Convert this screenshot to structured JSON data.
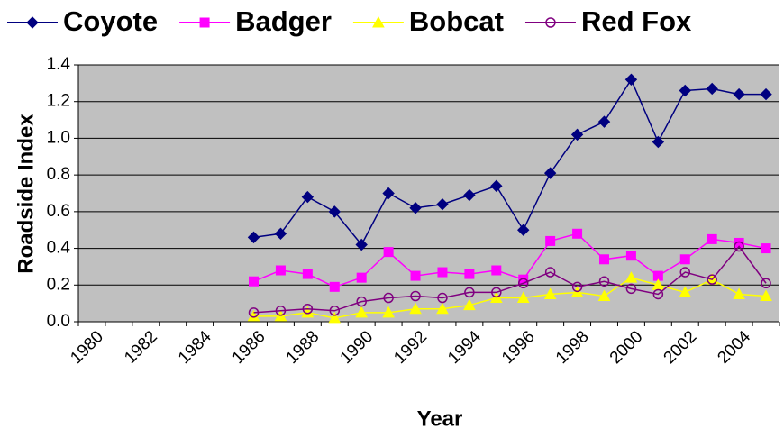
{
  "chart_data": {
    "type": "line",
    "x_label": "Year",
    "y_label": "Roadside Index",
    "categories": [
      "1980",
      null,
      "1982",
      null,
      "1984",
      null,
      "1986",
      null,
      "1988",
      null,
      "1990",
      null,
      "1992",
      null,
      "1994",
      null,
      "1996",
      null,
      "1998",
      null,
      "2000",
      null,
      "2002",
      null,
      "2004",
      null
    ],
    "series": [
      {
        "name": "Coyote",
        "color": "#000080",
        "marker": "diamond",
        "values": [
          null,
          null,
          null,
          null,
          null,
          null,
          0.46,
          0.48,
          0.68,
          0.6,
          0.42,
          0.7,
          0.62,
          0.64,
          0.69,
          0.74,
          0.5,
          0.81,
          1.02,
          1.09,
          1.32,
          0.98,
          1.26,
          1.27,
          1.24,
          1.24
        ]
      },
      {
        "name": "Badger",
        "color": "#ff00ff",
        "marker": "square",
        "values": [
          null,
          null,
          null,
          null,
          null,
          null,
          0.22,
          0.28,
          0.26,
          0.19,
          0.24,
          0.38,
          0.25,
          0.27,
          0.26,
          0.28,
          0.23,
          0.44,
          0.48,
          0.34,
          0.36,
          0.25,
          0.34,
          0.45,
          0.43,
          0.4
        ]
      },
      {
        "name": "Bobcat",
        "color": "#ffff00",
        "marker": "triangle",
        "values": [
          null,
          null,
          null,
          null,
          null,
          null,
          0.03,
          0.03,
          0.05,
          0.02,
          0.05,
          0.05,
          0.07,
          0.07,
          0.09,
          0.13,
          0.13,
          0.15,
          0.16,
          0.14,
          0.24,
          0.2,
          0.16,
          0.23,
          0.15,
          0.14
        ]
      },
      {
        "name": "Red Fox",
        "color": "#800080",
        "marker": "circle",
        "values": [
          null,
          null,
          null,
          null,
          null,
          null,
          0.05,
          0.06,
          0.07,
          0.06,
          0.11,
          0.13,
          0.14,
          0.13,
          0.16,
          0.16,
          0.21,
          0.27,
          0.19,
          0.22,
          0.18,
          0.15,
          0.27,
          0.23,
          0.41,
          0.21
        ]
      }
    ],
    "ylim": [
      0,
      1.4
    ],
    "yticks": [
      {
        "value": 0,
        "label": "0.0"
      },
      0.2,
      0.4,
      0.6,
      0.8,
      {
        "value": 1,
        "label": "1.0"
      },
      1.2,
      1.4
    ],
    "grid": true,
    "legend": "top",
    "plot_background": "#c0c0c0"
  }
}
